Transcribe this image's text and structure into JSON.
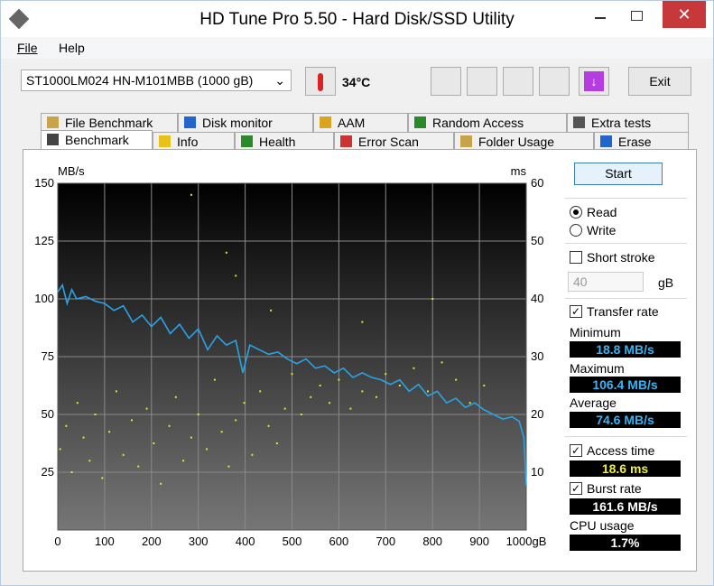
{
  "window": {
    "title": "HD Tune Pro 5.50 - Hard Disk/SSD Utility"
  },
  "menu": [
    "File",
    "Help"
  ],
  "toolbar": {
    "drive": "ST1000LM024 HN-M101MBB (1000 gB)",
    "temperature": "34°C",
    "exit": "Exit"
  },
  "tabs_top": [
    "File Benchmark",
    "Disk monitor",
    "AAM",
    "Random Access",
    "Extra tests"
  ],
  "tabs_bottom": [
    "Benchmark",
    "Info",
    "Health",
    "Error Scan",
    "Folder Usage",
    "Erase"
  ],
  "side": {
    "start": "Start",
    "read": "Read",
    "write": "Write",
    "short_stroke": "Short stroke",
    "stroke_value": "40",
    "stroke_unit": "gB",
    "transfer_rate": "Transfer rate",
    "minimum_label": "Minimum",
    "minimum": "18.8 MB/s",
    "maximum_label": "Maximum",
    "maximum": "106.4 MB/s",
    "average_label": "Average",
    "average": "74.6 MB/s",
    "access_time_label": "Access time",
    "access_time": "18.6 ms",
    "burst_rate_label": "Burst rate",
    "burst_rate": "161.6 MB/s",
    "cpu_label": "CPU usage",
    "cpu": "1.7%"
  },
  "chart_data": {
    "type": "line",
    "y_label": "MB/s",
    "y2_label": "ms",
    "xlim": [
      0,
      1000
    ],
    "xticks": [
      0,
      100,
      200,
      300,
      400,
      500,
      600,
      700,
      800,
      900,
      {
        "value": 1000,
        "label": "1000gB"
      }
    ],
    "ylim": [
      0,
      150
    ],
    "yticks": [
      25,
      50,
      75,
      100,
      125,
      150
    ],
    "y2lim": [
      0,
      60
    ],
    "y2ticks": [
      10,
      20,
      30,
      40,
      50,
      60
    ],
    "grid": true,
    "series": [
      {
        "name": "Transfer rate",
        "type": "line",
        "color": "#29a3e6",
        "x": [
          0,
          10,
          20,
          30,
          40,
          60,
          80,
          100,
          120,
          140,
          160,
          180,
          200,
          220,
          240,
          260,
          280,
          300,
          320,
          340,
          360,
          380,
          395,
          410,
          430,
          450,
          470,
          490,
          510,
          530,
          550,
          570,
          590,
          610,
          630,
          650,
          670,
          690,
          710,
          730,
          750,
          770,
          790,
          810,
          830,
          850,
          870,
          890,
          910,
          930,
          950,
          970,
          985,
          995,
          1000
        ],
        "values": [
          103,
          106,
          98,
          104,
          100,
          101,
          99,
          98,
          95,
          97,
          90,
          93,
          88,
          92,
          85,
          89,
          83,
          87,
          78,
          84,
          80,
          82,
          68,
          80,
          78,
          76,
          77,
          74,
          72,
          74,
          70,
          71,
          68,
          70,
          66,
          68,
          66,
          65,
          63,
          65,
          60,
          63,
          58,
          60,
          55,
          57,
          53,
          55,
          52,
          50,
          48,
          49,
          47,
          40,
          19
        ]
      },
      {
        "name": "Access time",
        "type": "scatter",
        "axis": "y2",
        "color": "#e6e62a",
        "x": [
          5,
          18,
          30,
          42,
          55,
          68,
          80,
          95,
          110,
          125,
          140,
          158,
          172,
          190,
          205,
          220,
          238,
          252,
          268,
          285,
          300,
          318,
          335,
          350,
          365,
          380,
          398,
          415,
          432,
          450,
          468,
          485,
          500,
          520,
          540,
          560,
          580,
          600,
          625,
          650,
          680,
          700,
          730,
          760,
          790,
          820,
          850,
          880,
          910,
          285,
          360,
          380,
          455,
          650,
          800
        ],
        "values": [
          14,
          18,
          10,
          22,
          16,
          12,
          20,
          9,
          17,
          24,
          13,
          19,
          11,
          21,
          15,
          8,
          18,
          23,
          12,
          16,
          20,
          14,
          26,
          17,
          11,
          19,
          22,
          13,
          24,
          18,
          15,
          21,
          27,
          20,
          23,
          25,
          22,
          26,
          21,
          24,
          23,
          27,
          25,
          28,
          24,
          29,
          26,
          22,
          25,
          58,
          48,
          44,
          38,
          36,
          40
        ]
      }
    ]
  }
}
